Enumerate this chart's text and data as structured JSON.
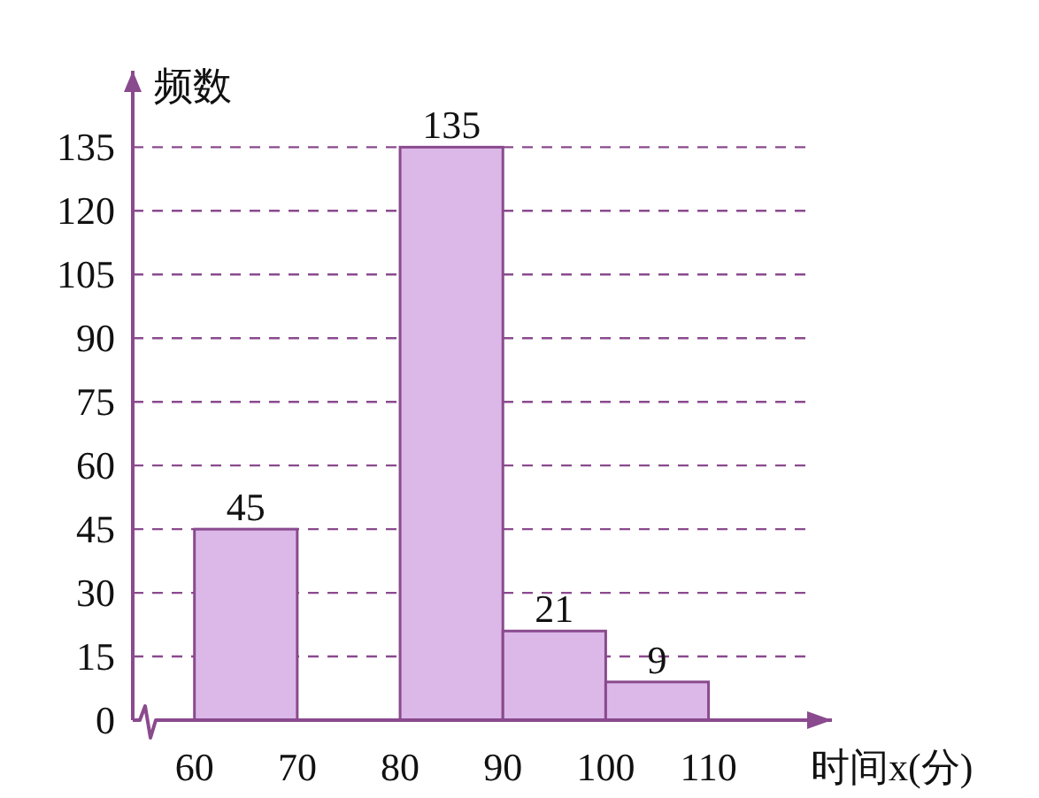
{
  "chart_data": {
    "type": "histogram",
    "xlabel": "时间x(分)",
    "ylabel": "频数",
    "bins": [
      60,
      70,
      80,
      90,
      100,
      110
    ],
    "values": [
      45,
      0,
      135,
      21,
      9
    ],
    "value_labels": [
      "45",
      null,
      "135",
      "21",
      "9"
    ],
    "color": "#dcb8e8",
    "xlim": [
      54,
      122
    ],
    "ylim": [
      0,
      153
    ],
    "xticks": [
      60,
      70,
      80,
      90,
      100,
      110
    ],
    "yticks": [
      0,
      15,
      30,
      45,
      60,
      75,
      90,
      105,
      120,
      135
    ],
    "grid": "y"
  }
}
